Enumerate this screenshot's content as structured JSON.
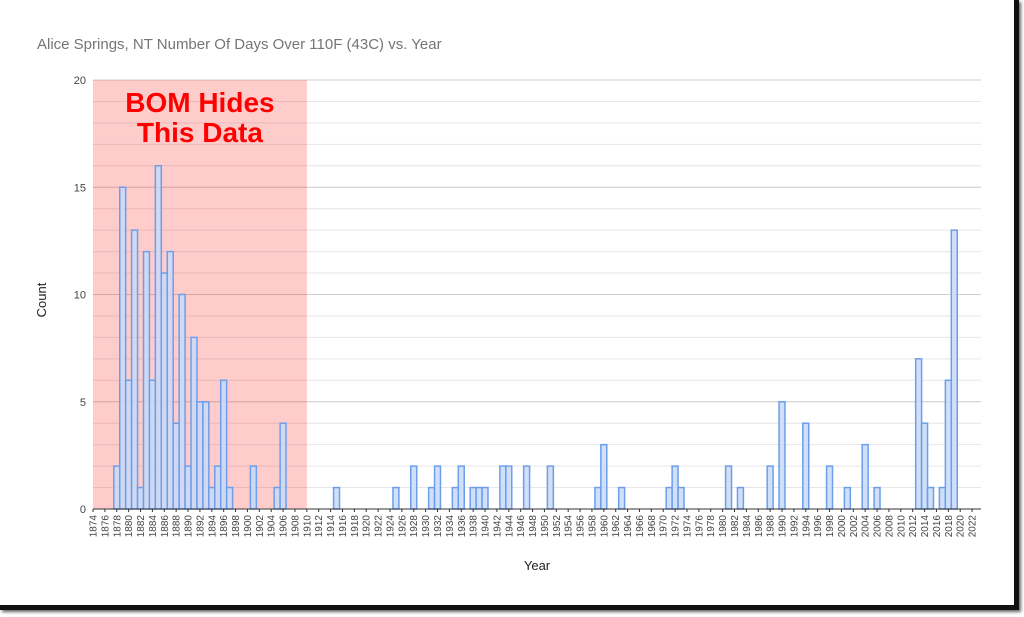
{
  "chart_data": {
    "type": "bar",
    "title": "Alice Springs, NT  Number Of Days Over 110F (43C) vs. Year",
    "x_label": "Year",
    "y_label": "Count",
    "x": [
      1874,
      1875,
      1876,
      1877,
      1878,
      1879,
      1880,
      1881,
      1882,
      1883,
      1884,
      1885,
      1886,
      1887,
      1888,
      1889,
      1890,
      1891,
      1892,
      1893,
      1894,
      1895,
      1896,
      1897,
      1898,
      1899,
      1900,
      1901,
      1902,
      1903,
      1904,
      1905,
      1906,
      1907,
      1908,
      1909,
      1910,
      1911,
      1912,
      1913,
      1914,
      1915,
      1916,
      1917,
      1918,
      1919,
      1920,
      1921,
      1922,
      1923,
      1924,
      1925,
      1926,
      1927,
      1928,
      1929,
      1930,
      1931,
      1932,
      1933,
      1934,
      1935,
      1936,
      1937,
      1938,
      1939,
      1940,
      1941,
      1942,
      1943,
      1944,
      1945,
      1946,
      1947,
      1948,
      1949,
      1950,
      1951,
      1952,
      1953,
      1954,
      1955,
      1956,
      1957,
      1958,
      1959,
      1960,
      1961,
      1962,
      1963,
      1964,
      1965,
      1966,
      1967,
      1968,
      1969,
      1970,
      1971,
      1972,
      1973,
      1974,
      1975,
      1976,
      1977,
      1978,
      1979,
      1980,
      1981,
      1982,
      1983,
      1984,
      1985,
      1986,
      1987,
      1988,
      1989,
      1990,
      1991,
      1992,
      1993,
      1994,
      1995,
      1996,
      1997,
      1998,
      1999,
      2000,
      2001,
      2002,
      2003,
      2004,
      2005,
      2006,
      2007,
      2008,
      2009,
      2010,
      2011,
      2012,
      2013,
      2014,
      2015,
      2016,
      2017,
      2018,
      2019,
      2020,
      2021,
      2022,
      2023
    ],
    "values": [
      0,
      0,
      0,
      0,
      2,
      15,
      6,
      13,
      1,
      12,
      6,
      16,
      11,
      12,
      4,
      10,
      2,
      8,
      5,
      5,
      1,
      2,
      6,
      1,
      0,
      0,
      0,
      2,
      0,
      0,
      0,
      1,
      4,
      0,
      0,
      0,
      0,
      0,
      0,
      0,
      0,
      1,
      0,
      0,
      0,
      0,
      0,
      0,
      0,
      0,
      0,
      1,
      0,
      0,
      2,
      0,
      0,
      1,
      2,
      0,
      0,
      1,
      2,
      0,
      1,
      1,
      1,
      0,
      0,
      2,
      2,
      0,
      0,
      2,
      0,
      0,
      0,
      2,
      0,
      0,
      0,
      0,
      0,
      0,
      0,
      1,
      3,
      0,
      0,
      1,
      0,
      0,
      0,
      0,
      0,
      0,
      0,
      1,
      2,
      1,
      0,
      0,
      0,
      0,
      0,
      0,
      0,
      2,
      0,
      1,
      0,
      0,
      0,
      0,
      2,
      0,
      5,
      0,
      0,
      0,
      4,
      0,
      0,
      0,
      2,
      0,
      0,
      1,
      0,
      0,
      3,
      0,
      1,
      0,
      0,
      0,
      0,
      0,
      0,
      7,
      4,
      1,
      0,
      1,
      6,
      13,
      0,
      0,
      0,
      0
    ],
    "color": "#c9daf8",
    "edge_color": "#6d9eeb",
    "xlim": [
      1874,
      2023.5
    ],
    "xticks": [
      1874,
      1876,
      1878,
      1880,
      1882,
      1884,
      1886,
      1888,
      1890,
      1892,
      1894,
      1896,
      1898,
      1900,
      1902,
      1904,
      1906,
      1908,
      1910,
      1912,
      1914,
      1916,
      1918,
      1920,
      1922,
      1924,
      1926,
      1928,
      1930,
      1932,
      1934,
      1936,
      1938,
      1940,
      1942,
      1944,
      1946,
      1948,
      1950,
      1952,
      1954,
      1956,
      1958,
      1960,
      1962,
      1964,
      1966,
      1968,
      1970,
      1972,
      1974,
      1976,
      1978,
      1980,
      1982,
      1984,
      1986,
      1988,
      1990,
      1992,
      1994,
      1996,
      1998,
      2000,
      2002,
      2004,
      2006,
      2008,
      2010,
      2012,
      2014,
      2016,
      2018,
      2020,
      2022
    ],
    "ylim": [
      0,
      20
    ],
    "yticks": [
      0,
      5,
      10,
      15,
      20
    ],
    "grid": true,
    "minor_grid_step": 1,
    "annotation": {
      "lines": [
        "BOM Hides",
        "This Data"
      ],
      "x_range": [
        1874,
        1910
      ],
      "color": "#ff0000",
      "shade": "rgba(255,0,0,0.2)"
    }
  }
}
